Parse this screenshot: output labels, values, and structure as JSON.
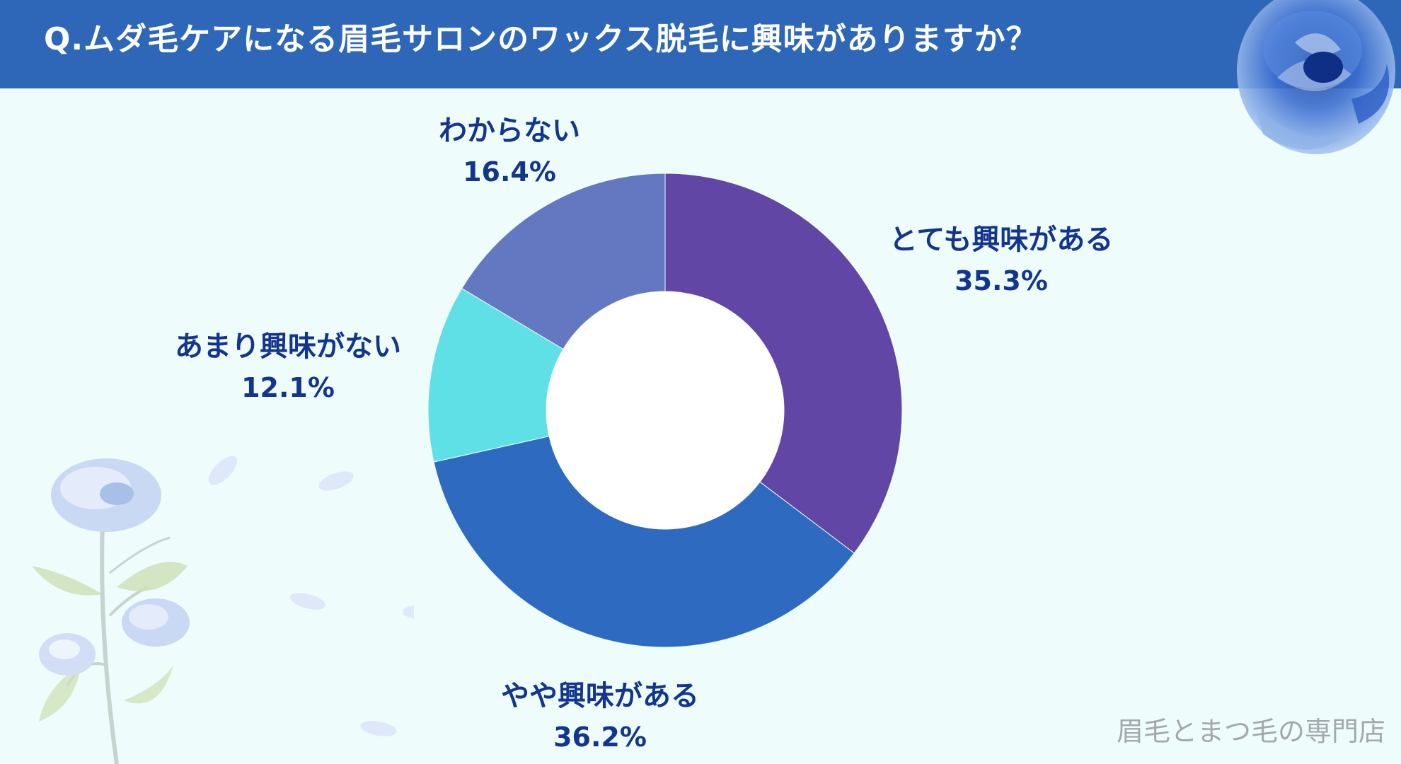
{
  "header": {
    "title": "Q.ムダ毛ケアになる眉毛サロンのワックス脱毛に興味がありますか？",
    "background": "#2e66b8"
  },
  "footer": {
    "text": "眉毛とまつ毛の専門店"
  },
  "decor": {
    "top_right": "blue-rose-icon",
    "bottom_left": "blue-rose-branch-icon"
  },
  "chart_data": {
    "type": "pie",
    "donut": true,
    "title": "",
    "start": "12 o'clock",
    "direction": "clockwise",
    "slices": [
      {
        "label": "とても興味がある",
        "value": 35.3,
        "display": "35.3%",
        "color": "#6246a6"
      },
      {
        "label": "やや興味がある",
        "value": 36.2,
        "display": "36.2%",
        "color": "#2e6bc0"
      },
      {
        "label": "あまり興味がない",
        "value": 12.1,
        "display": "12.1%",
        "color": "#5fe0e6"
      },
      {
        "label": "わからない",
        "value": 16.4,
        "display": "16.4%",
        "color": "#6378c0"
      }
    ]
  }
}
